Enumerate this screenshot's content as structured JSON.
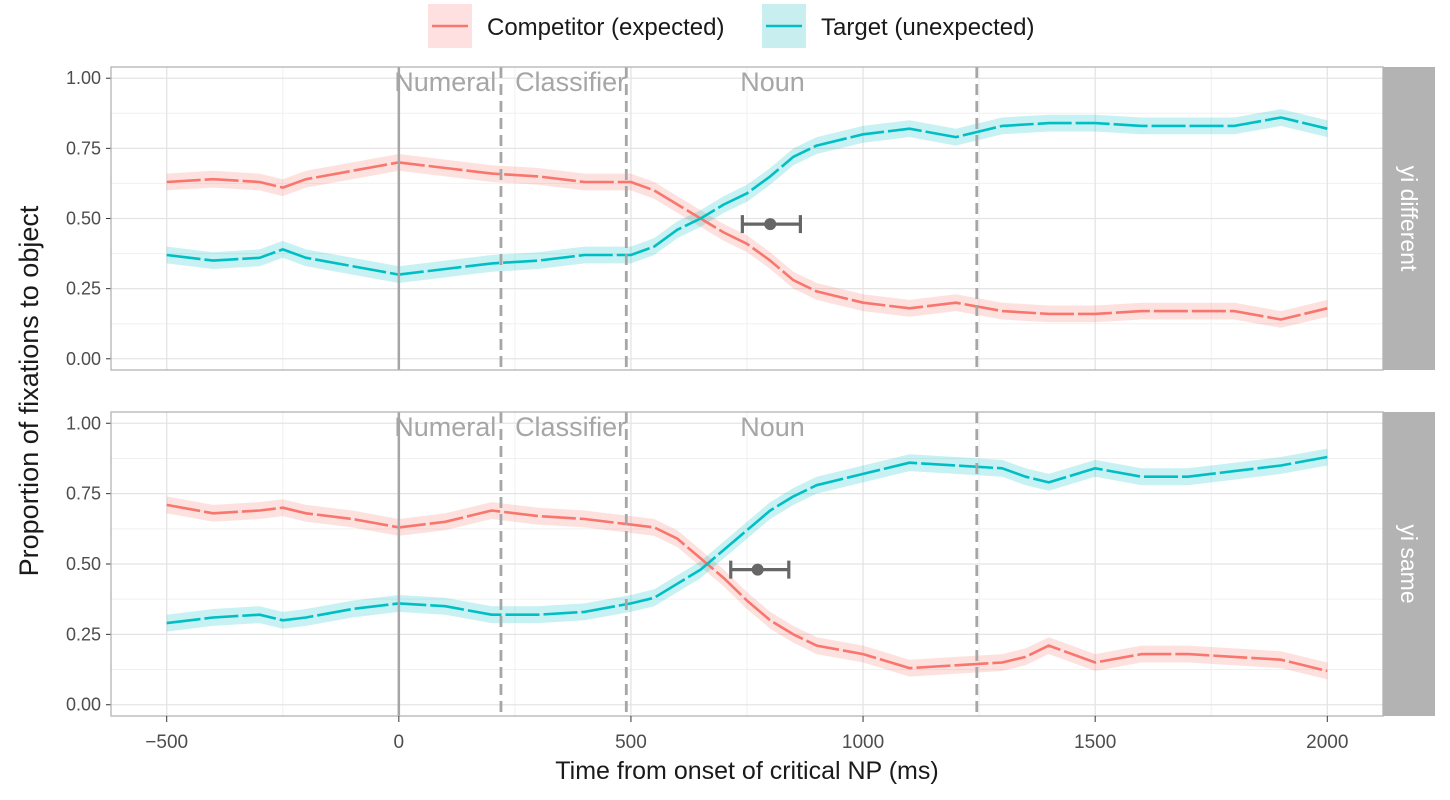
{
  "chart_data": {
    "type": "line",
    "title": "",
    "xlabel": "Time from onset of critical NP (ms)",
    "ylabel": "Proportion of fixations to object",
    "xlim": [
      -620,
      2120
    ],
    "ylim": [
      -0.04,
      1.04
    ],
    "x_ticks": [
      -500,
      0,
      500,
      1000,
      1500,
      2000
    ],
    "x_tick_labels": [
      "−500",
      "0",
      "500",
      "1000",
      "1500",
      "2000"
    ],
    "y_ticks": [
      0,
      0.25,
      0.5,
      0.75,
      1
    ],
    "y_tick_labels": [
      "0.00",
      "0.25",
      "0.50",
      "0.75",
      "1.00"
    ],
    "grid": true,
    "legend": {
      "position": "top",
      "entries": [
        {
          "label": "Competitor (expected)",
          "color": "#F8766D"
        },
        {
          "label": "Target (unexpected)",
          "color": "#00BFC4"
        }
      ]
    },
    "colors": {
      "competitor": "#F8766D",
      "target": "#00BFC4",
      "strip": "#B3B3B3",
      "marker": "#666666"
    },
    "region_labels": [
      {
        "label": "Numeral",
        "x": 100
      },
      {
        "label": "Classifier",
        "x": 370
      },
      {
        "label": "Noun",
        "x": 805
      }
    ],
    "solid_vline": 0,
    "dashed_vlines": [
      220,
      490,
      1245
    ],
    "band_halfwidth": 0.03,
    "panels": [
      {
        "strip": "yi different",
        "series": [
          {
            "name": "Competitor (expected)",
            "x": [
              -500,
              -400,
              -300,
              -250,
              -200,
              -100,
              0,
              100,
              200,
              300,
              400,
              500,
              550,
              600,
              650,
              700,
              750,
              800,
              850,
              900,
              1000,
              1100,
              1200,
              1300,
              1400,
              1500,
              1600,
              1700,
              1800,
              1900,
              2000
            ],
            "y": [
              0.63,
              0.64,
              0.63,
              0.61,
              0.64,
              0.67,
              0.7,
              0.68,
              0.66,
              0.65,
              0.63,
              0.63,
              0.6,
              0.55,
              0.5,
              0.45,
              0.41,
              0.35,
              0.28,
              0.24,
              0.2,
              0.18,
              0.2,
              0.17,
              0.16,
              0.16,
              0.17,
              0.17,
              0.17,
              0.14,
              0.18
            ]
          },
          {
            "name": "Target (unexpected)",
            "x": [
              -500,
              -400,
              -300,
              -250,
              -200,
              -100,
              0,
              100,
              200,
              300,
              400,
              500,
              550,
              600,
              650,
              700,
              750,
              800,
              850,
              900,
              1000,
              1100,
              1200,
              1300,
              1400,
              1500,
              1600,
              1700,
              1800,
              1900,
              2000
            ],
            "y": [
              0.37,
              0.35,
              0.36,
              0.39,
              0.36,
              0.33,
              0.3,
              0.32,
              0.34,
              0.35,
              0.37,
              0.37,
              0.4,
              0.46,
              0.5,
              0.55,
              0.59,
              0.65,
              0.72,
              0.76,
              0.8,
              0.82,
              0.79,
              0.83,
              0.84,
              0.84,
              0.83,
              0.83,
              0.83,
              0.86,
              0.82
            ]
          }
        ],
        "point_estimate": {
          "x": 800,
          "y": 0.48,
          "xmin": 740,
          "xmax": 865
        }
      },
      {
        "strip": "yi same",
        "series": [
          {
            "name": "Competitor (expected)",
            "x": [
              -500,
              -400,
              -300,
              -250,
              -200,
              -100,
              0,
              100,
              200,
              300,
              400,
              500,
              550,
              600,
              650,
              700,
              750,
              800,
              850,
              900,
              1000,
              1100,
              1200,
              1300,
              1350,
              1400,
              1500,
              1600,
              1700,
              1800,
              1900,
              2000
            ],
            "y": [
              0.71,
              0.68,
              0.69,
              0.7,
              0.68,
              0.66,
              0.63,
              0.65,
              0.69,
              0.67,
              0.66,
              0.64,
              0.63,
              0.59,
              0.52,
              0.45,
              0.37,
              0.3,
              0.25,
              0.21,
              0.18,
              0.13,
              0.14,
              0.15,
              0.17,
              0.21,
              0.15,
              0.18,
              0.18,
              0.17,
              0.16,
              0.12
            ]
          },
          {
            "name": "Target (unexpected)",
            "x": [
              -500,
              -400,
              -300,
              -250,
              -200,
              -100,
              0,
              100,
              200,
              300,
              400,
              500,
              550,
              600,
              650,
              700,
              750,
              800,
              850,
              900,
              1000,
              1100,
              1200,
              1300,
              1350,
              1400,
              1500,
              1600,
              1700,
              1800,
              1900,
              2000
            ],
            "y": [
              0.29,
              0.31,
              0.32,
              0.3,
              0.31,
              0.34,
              0.36,
              0.35,
              0.32,
              0.32,
              0.33,
              0.36,
              0.38,
              0.43,
              0.48,
              0.55,
              0.62,
              0.69,
              0.74,
              0.78,
              0.82,
              0.86,
              0.85,
              0.84,
              0.81,
              0.79,
              0.84,
              0.81,
              0.81,
              0.83,
              0.85,
              0.88
            ]
          }
        ],
        "point_estimate": {
          "x": 773,
          "y": 0.48,
          "xmin": 715,
          "xmax": 840
        }
      }
    ]
  }
}
